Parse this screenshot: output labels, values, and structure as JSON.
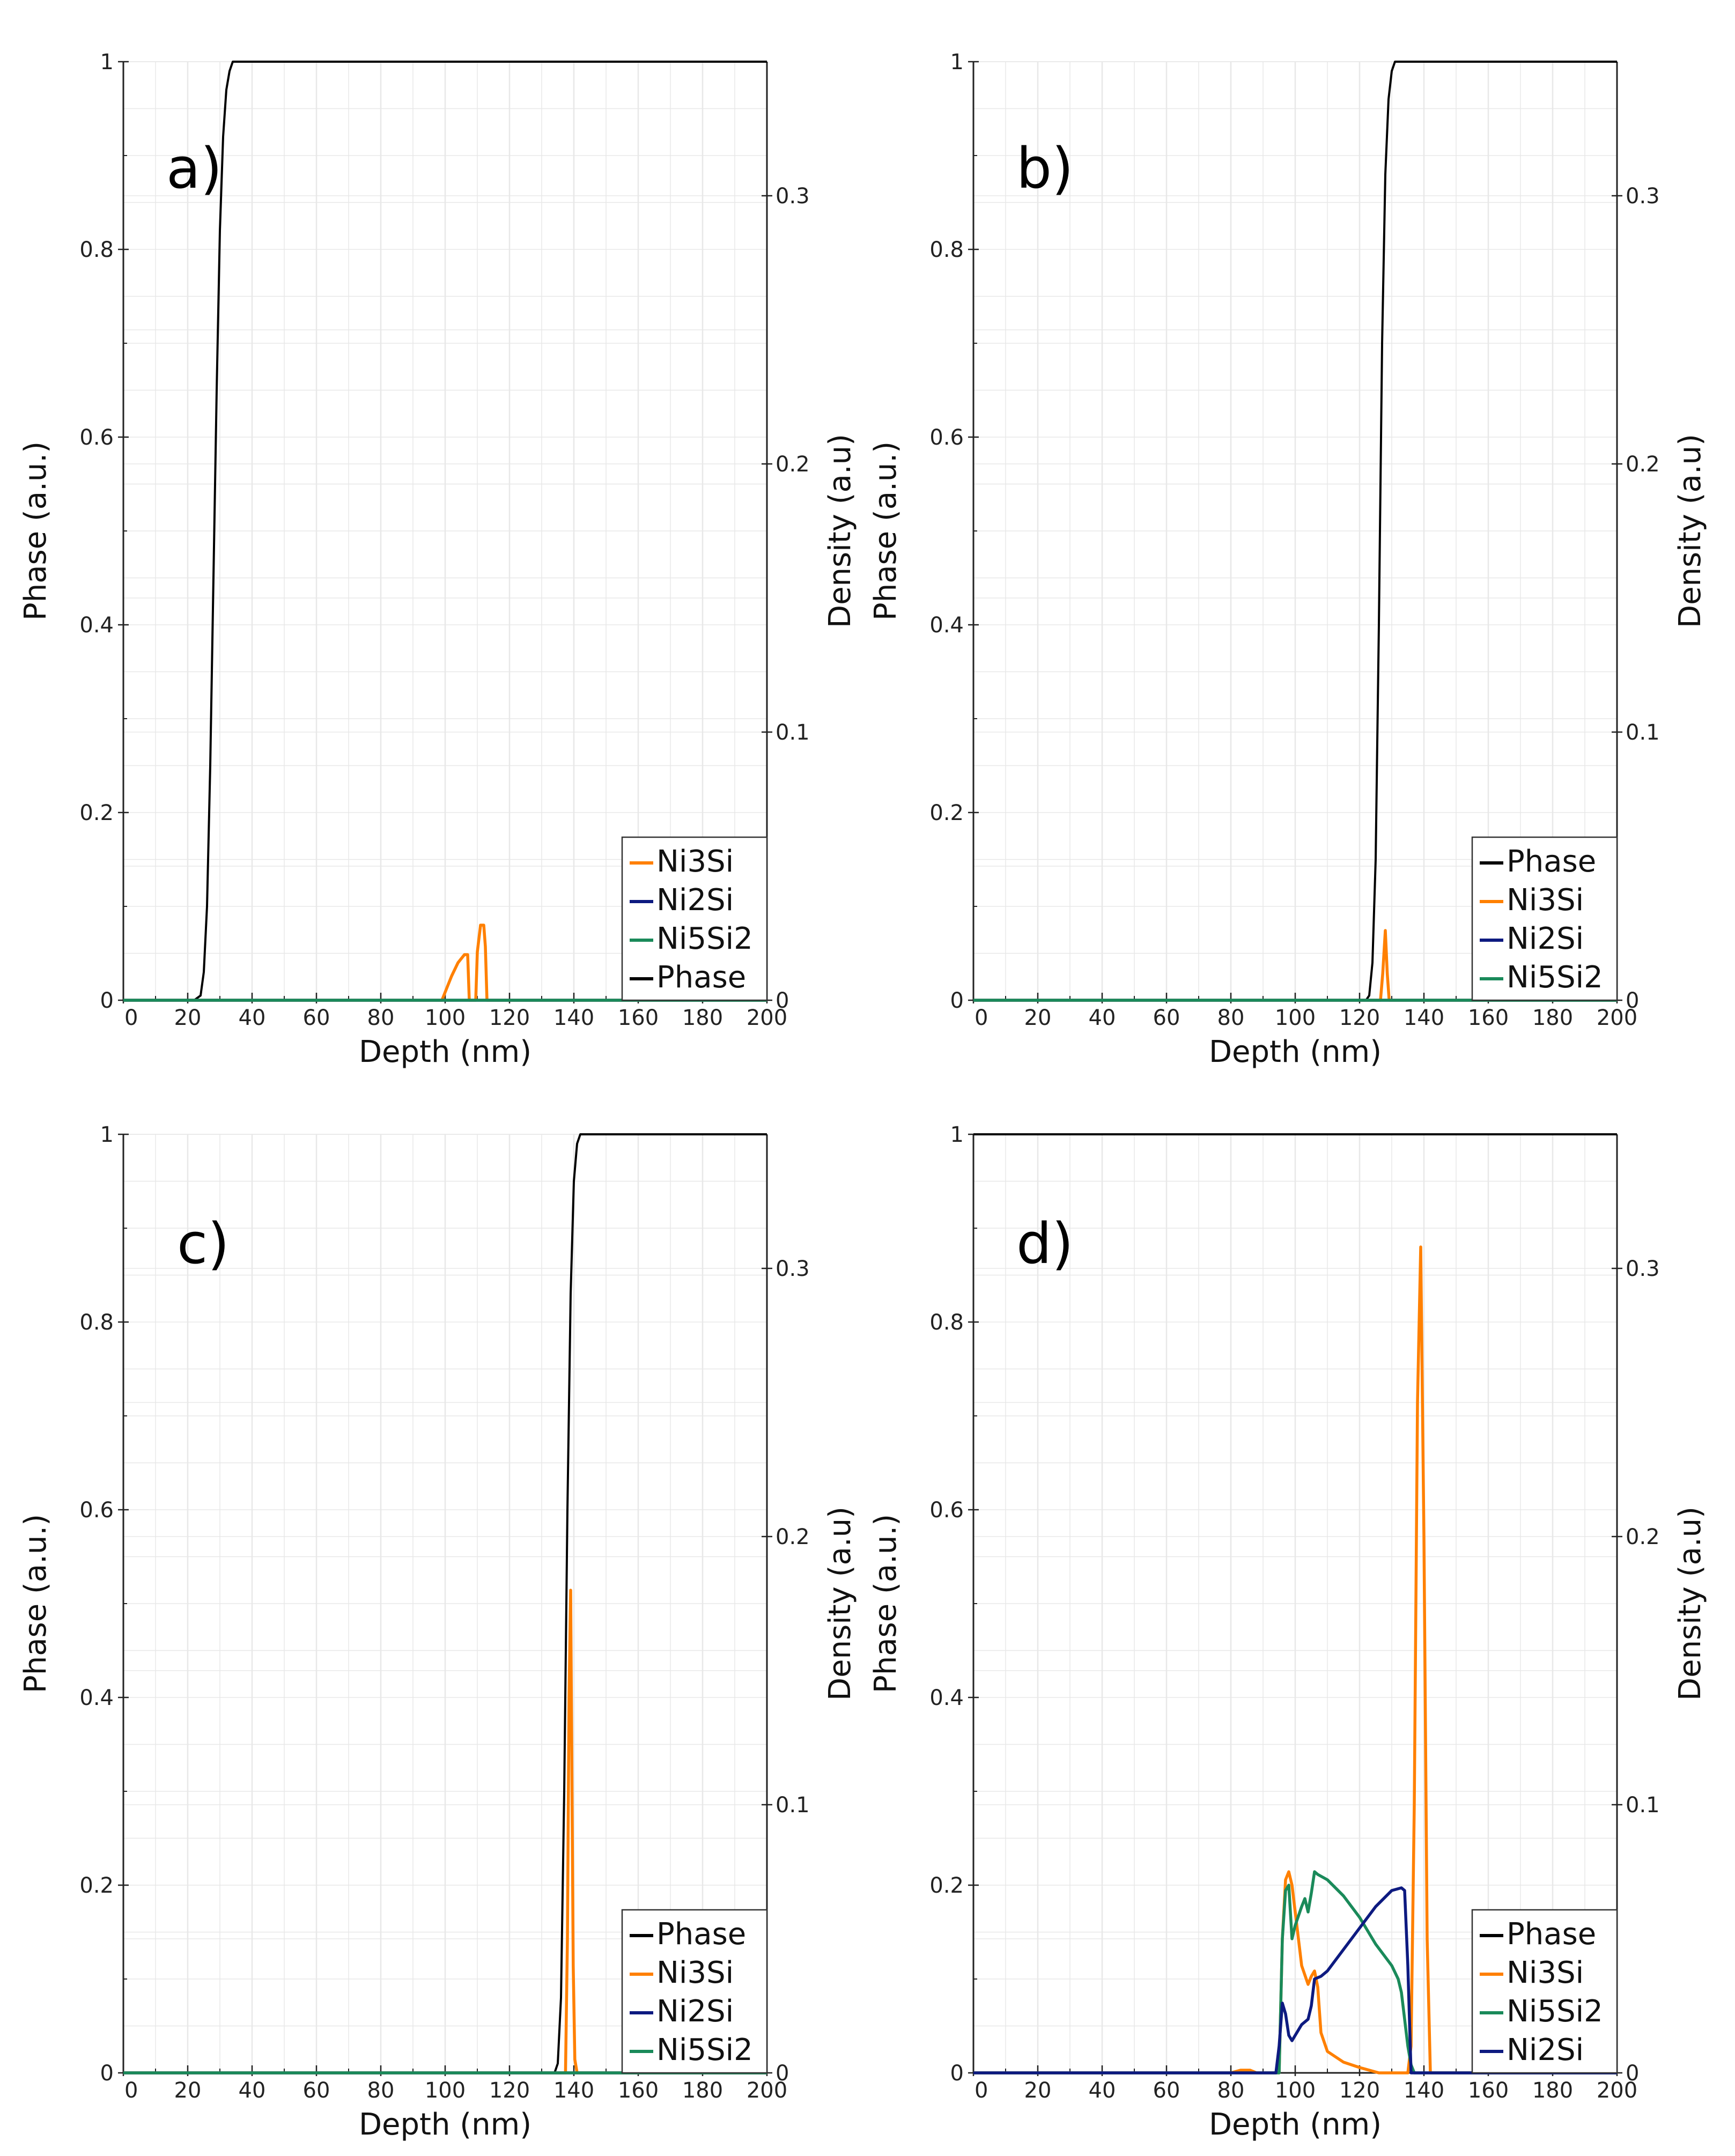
{
  "figure": {
    "title": "Phase and density profiles vs depth (4 panels)"
  },
  "colors": {
    "Phase": "#000000",
    "Ni3Si": "#ff8000",
    "Ni2Si": "#0d1a80",
    "Ni5Si2": "#1a8a5a",
    "grid": "#e8e8e8"
  },
  "chart_data": [
    {
      "type": "line",
      "panel_label": "a)",
      "xlabel": "Depth (nm)",
      "ylabel": "Phase (a.u.)",
      "y2label": "Density (a.u)",
      "xlim": [
        0,
        200
      ],
      "ylim": [
        0,
        1
      ],
      "y2lim": [
        0,
        0.35
      ],
      "xticks": [
        "0",
        "20",
        "40",
        "60",
        "80",
        "100",
        "120",
        "140",
        "160",
        "180",
        "200"
      ],
      "yticks": [
        "0",
        "0.2",
        "0.4",
        "0.6",
        "0.8",
        "1"
      ],
      "y2ticks": [
        "0",
        "0.1",
        "0.2",
        "0.3"
      ],
      "legend": [
        "Ni3Si",
        "Ni2Si",
        "Ni5Si2",
        "Phase"
      ],
      "series": [
        {
          "name": "Phase",
          "axis": "left",
          "x": [
            0,
            22,
            24,
            25,
            26,
            27,
            28,
            29,
            30,
            31,
            32,
            33,
            34,
            36,
            200
          ],
          "y": [
            0,
            0,
            0.005,
            0.03,
            0.1,
            0.25,
            0.45,
            0.65,
            0.82,
            0.92,
            0.97,
            0.99,
            1,
            1,
            1
          ]
        },
        {
          "name": "Ni3Si",
          "axis": "right",
          "x": [
            0,
            99,
            100,
            102,
            104,
            106,
            107,
            107.5,
            108.5,
            109.5,
            110,
            111,
            112,
            112.5,
            113,
            114,
            200
          ],
          "y": [
            0,
            0,
            0.003,
            0.009,
            0.014,
            0.017,
            0.017,
            0,
            0,
            0,
            0.018,
            0.028,
            0.028,
            0.02,
            0,
            0,
            0
          ]
        },
        {
          "name": "Ni2Si",
          "axis": "right",
          "x": [
            0,
            200
          ],
          "y": [
            0,
            0
          ]
        },
        {
          "name": "Ni5Si2",
          "axis": "right",
          "x": [
            0,
            200
          ],
          "y": [
            0,
            0
          ]
        }
      ]
    },
    {
      "type": "line",
      "panel_label": "b)",
      "xlabel": "Depth (nm)",
      "ylabel": "Phase (a.u.)",
      "y2label": "Density (a.u)",
      "xlim": [
        0,
        200
      ],
      "ylim": [
        0,
        1
      ],
      "y2lim": [
        0,
        0.35
      ],
      "xticks": [
        "0",
        "20",
        "40",
        "60",
        "80",
        "100",
        "120",
        "140",
        "160",
        "180",
        "200"
      ],
      "yticks": [
        "0",
        "0.2",
        "0.4",
        "0.6",
        "0.8",
        "1"
      ],
      "y2ticks": [
        "0",
        "0.1",
        "0.2",
        "0.3"
      ],
      "legend": [
        "Phase",
        "Ni3Si",
        "Ni2Si",
        "Ni5Si2"
      ],
      "series": [
        {
          "name": "Phase",
          "axis": "left",
          "x": [
            0,
            122,
            123,
            124,
            125,
            126,
            127,
            128,
            129,
            130,
            131,
            132,
            200
          ],
          "y": [
            0,
            0,
            0.005,
            0.04,
            0.15,
            0.4,
            0.7,
            0.88,
            0.96,
            0.99,
            1,
            1,
            1
          ]
        },
        {
          "name": "Ni3Si",
          "axis": "right",
          "x": [
            0,
            126.5,
            127.2,
            128,
            128.6,
            129.2,
            200
          ],
          "y": [
            0,
            0,
            0.01,
            0.026,
            0.01,
            0,
            0
          ]
        },
        {
          "name": "Ni2Si",
          "axis": "right",
          "x": [
            0,
            200
          ],
          "y": [
            0,
            0
          ]
        },
        {
          "name": "Ni5Si2",
          "axis": "right",
          "x": [
            0,
            200
          ],
          "y": [
            0,
            0
          ]
        }
      ]
    },
    {
      "type": "line",
      "panel_label": "c)",
      "xlabel": "Depth (nm)",
      "ylabel": "Phase (a.u.)",
      "y2label": "Density (a.u)",
      "xlim": [
        0,
        200
      ],
      "ylim": [
        0,
        1
      ],
      "y2lim": [
        0,
        0.35
      ],
      "xticks": [
        "0",
        "20",
        "40",
        "60",
        "80",
        "100",
        "120",
        "140",
        "160",
        "180",
        "200"
      ],
      "yticks": [
        "0",
        "0.2",
        "0.4",
        "0.6",
        "0.8",
        "1"
      ],
      "y2ticks": [
        "0",
        "0.1",
        "0.2",
        "0.3"
      ],
      "legend": [
        "Phase",
        "Ni3Si",
        "Ni2Si",
        "Ni5Si2"
      ],
      "series": [
        {
          "name": "Phase",
          "axis": "left",
          "x": [
            0,
            134,
            135,
            136,
            137,
            138,
            139,
            140,
            141,
            142,
            143,
            200
          ],
          "y": [
            0,
            0,
            0.01,
            0.08,
            0.3,
            0.6,
            0.83,
            0.95,
            0.99,
            1,
            1,
            1
          ]
        },
        {
          "name": "Ni3Si",
          "axis": "right",
          "x": [
            0,
            137.4,
            138,
            138.5,
            139,
            139.4,
            139.8,
            140.3,
            141,
            200
          ],
          "y": [
            0,
            0,
            0.05,
            0.14,
            0.18,
            0.11,
            0.04,
            0.005,
            0,
            0
          ]
        },
        {
          "name": "Ni2Si",
          "axis": "right",
          "x": [
            0,
            200
          ],
          "y": [
            0,
            0
          ]
        },
        {
          "name": "Ni5Si2",
          "axis": "right",
          "x": [
            0,
            200
          ],
          "y": [
            0,
            0
          ]
        }
      ]
    },
    {
      "type": "line",
      "panel_label": "d)",
      "xlabel": "Depth (nm)",
      "ylabel": "Phase (a.u.)",
      "y2label": "Density (a.u)",
      "xlim": [
        0,
        200
      ],
      "ylim": [
        0,
        1
      ],
      "y2lim": [
        0,
        0.35
      ],
      "xticks": [
        "0",
        "20",
        "40",
        "60",
        "80",
        "100",
        "120",
        "140",
        "160",
        "180",
        "200"
      ],
      "yticks": [
        "0",
        "0.2",
        "0.4",
        "0.6",
        "0.8",
        "1"
      ],
      "y2ticks": [
        "0",
        "0.1",
        "0.2",
        "0.3"
      ],
      "legend": [
        "Phase",
        "Ni3Si",
        "Ni5Si2",
        "Ni2Si"
      ],
      "series": [
        {
          "name": "Phase",
          "axis": "left",
          "x": [
            0,
            200
          ],
          "y": [
            1,
            1
          ]
        },
        {
          "name": "Ni3Si",
          "axis": "right",
          "x": [
            0,
            80,
            83,
            86,
            88,
            95,
            96,
            97,
            98,
            99,
            100,
            102,
            104,
            105,
            106,
            107,
            108,
            110,
            115,
            120,
            126,
            130,
            135,
            136,
            137,
            138,
            139,
            140,
            141,
            142,
            200
          ],
          "y": [
            0,
            0,
            0.001,
            0.001,
            0,
            0,
            0.05,
            0.072,
            0.075,
            0.07,
            0.06,
            0.04,
            0.033,
            0.036,
            0.038,
            0.032,
            0.015,
            0.008,
            0.004,
            0.002,
            0,
            0,
            0,
            0.01,
            0.1,
            0.25,
            0.308,
            0.2,
            0.05,
            0,
            0
          ]
        },
        {
          "name": "Ni5Si2",
          "axis": "right",
          "x": [
            0,
            95,
            96,
            97,
            98,
            99,
            100,
            102,
            103,
            104,
            105,
            106,
            107,
            110,
            115,
            120,
            125,
            130,
            132,
            133,
            134,
            135,
            136,
            137,
            200
          ],
          "y": [
            0,
            0,
            0.05,
            0.068,
            0.07,
            0.05,
            0.055,
            0.062,
            0.065,
            0.06,
            0.067,
            0.075,
            0.074,
            0.072,
            0.066,
            0.058,
            0.048,
            0.04,
            0.035,
            0.03,
            0.02,
            0.01,
            0.003,
            0,
            0
          ]
        },
        {
          "name": "Ni2Si",
          "axis": "right",
          "x": [
            0,
            94,
            95,
            96,
            97,
            98,
            99,
            100,
            102,
            104,
            105,
            106,
            108,
            110,
            115,
            120,
            125,
            130,
            133,
            134,
            135,
            136,
            200
          ],
          "y": [
            0,
            0,
            0.01,
            0.026,
            0.022,
            0.014,
            0.012,
            0.014,
            0.018,
            0.02,
            0.025,
            0.035,
            0.036,
            0.038,
            0.046,
            0.054,
            0.062,
            0.068,
            0.069,
            0.068,
            0.04,
            0,
            0
          ]
        }
      ]
    }
  ]
}
